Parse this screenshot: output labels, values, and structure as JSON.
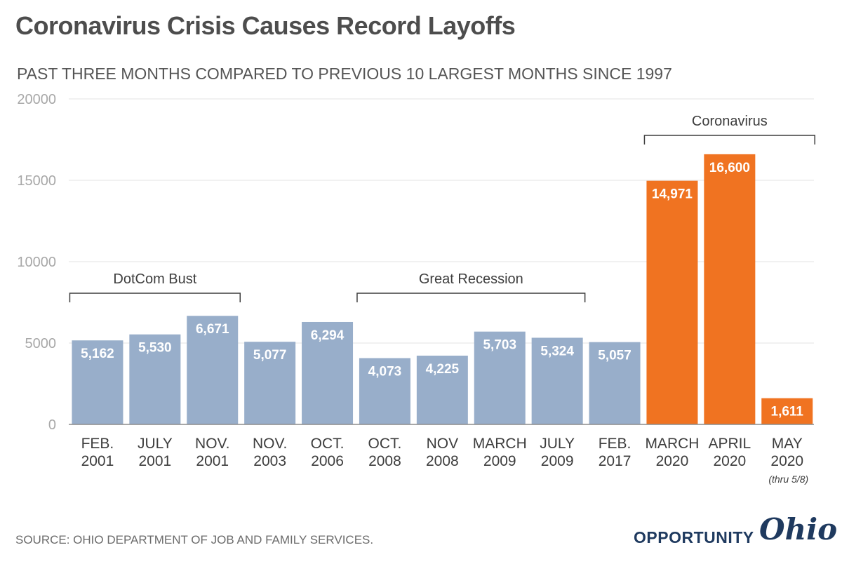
{
  "title": "Coronavirus Crisis Causes Record Layoffs",
  "subtitle": "PAST THREE MONTHS COMPARED TO PREVIOUS 10 LARGEST MONTHS SINCE 1997",
  "source": "SOURCE: OHIO DEPARTMENT OF JOB AND FAMILY SERVICES.",
  "logo": {
    "word": "OPPORTUNITY",
    "script": "Ohio"
  },
  "colors": {
    "past": "#98aeca",
    "current": "#f07321",
    "grid": "#e3e3e3",
    "axis": "#8c8c8c"
  },
  "chart_data": {
    "type": "bar",
    "ylim": [
      0,
      20000
    ],
    "yticks": [
      "0",
      "5000",
      "10000",
      "15000",
      "20000"
    ],
    "grid": true,
    "categories": [
      [
        "FEB.",
        "2001"
      ],
      [
        "JULY",
        "2001"
      ],
      [
        "NOV.",
        "2001"
      ],
      [
        "NOV.",
        "2003"
      ],
      [
        "OCT.",
        "2006"
      ],
      [
        "OCT.",
        "2008"
      ],
      [
        "NOV",
        "2008"
      ],
      [
        "MARCH",
        "2009"
      ],
      [
        "JULY",
        "2009"
      ],
      [
        "FEB.",
        "2017"
      ],
      [
        "MARCH",
        "2020"
      ],
      [
        "APRIL",
        "2020"
      ],
      [
        "MAY",
        "2020"
      ]
    ],
    "values": [
      5162,
      5530,
      6671,
      5077,
      6294,
      4073,
      4225,
      5703,
      5324,
      5057,
      14971,
      16600,
      1611
    ],
    "value_labels": [
      "5,162",
      "5,530",
      "6,671",
      "5,077",
      "6,294",
      "4,073",
      "4,225",
      "5,703",
      "5,324",
      "5,057",
      "14,971",
      "16,600",
      "1,611"
    ],
    "highlight": [
      false,
      false,
      false,
      false,
      false,
      false,
      false,
      false,
      false,
      false,
      true,
      true,
      true
    ],
    "category_note": {
      "index": 12,
      "text": "(thru 5/8)"
    },
    "groups": [
      {
        "label": "DotCom Bust",
        "from": 0,
        "to": 2
      },
      {
        "label": "Great Recession",
        "from": 5,
        "to": 8
      },
      {
        "label": "Coronavirus",
        "from": 10,
        "to": 12
      }
    ]
  }
}
